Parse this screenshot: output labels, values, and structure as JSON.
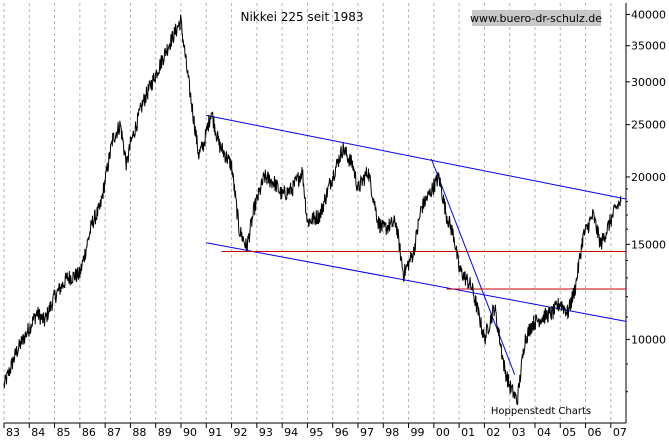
{
  "chart_data": {
    "type": "line",
    "title": "Nikkei 225 seit 1983",
    "source_label": "www.buero-dr-schulz.de",
    "credit": "Hoppenstedt Charts",
    "xlabel": "",
    "ylabel": "",
    "y_scale": "log",
    "ylim": [
      7000,
      42000
    ],
    "x_range": [
      1983.0,
      2007.6
    ],
    "x_ticks": [
      "83",
      "84",
      "85",
      "86",
      "87",
      "88",
      "89",
      "90",
      "91",
      "92",
      "93",
      "94",
      "95",
      "96",
      "97",
      "98",
      "99",
      "00",
      "01",
      "02",
      "03",
      "04",
      "05",
      "06",
      "07"
    ],
    "y_ticks": [
      10000,
      15000,
      20000,
      25000,
      30000,
      35000,
      40000
    ],
    "grid": true,
    "colors": {
      "series": "#000000",
      "trend_channel": "#0000ff",
      "support": "#cc0000",
      "source_bg": "#c8c8c8"
    },
    "series": [
      {
        "name": "",
        "x": [
          1983.0,
          1983.5,
          1984.0,
          1984.3,
          1984.6,
          1985.0,
          1985.5,
          1986.0,
          1986.5,
          1986.8,
          1987.3,
          1987.6,
          1987.85,
          1988.0,
          1988.5,
          1989.0,
          1989.5,
          1989.99,
          1990.3,
          1990.7,
          1990.9,
          1991.2,
          1991.5,
          1992.0,
          1992.3,
          1992.6,
          1992.9,
          1993.3,
          1993.7,
          1994.0,
          1994.4,
          1994.8,
          1995.0,
          1995.5,
          1995.9,
          1996.4,
          1996.8,
          1997.0,
          1997.4,
          1997.8,
          1998.0,
          1998.5,
          1998.8,
          1999.2,
          1999.5,
          1999.8,
          2000.2,
          2000.5,
          2000.8,
          2001.0,
          2001.5,
          2001.8,
          2002.0,
          2002.4,
          2002.8,
          2003.0,
          2003.3,
          2003.6,
          2003.9,
          2004.3,
          2004.7,
          2005.0,
          2005.3,
          2005.6,
          2005.9,
          2006.3,
          2006.6,
          2006.9,
          2007.2,
          2007.4
        ],
        "values": [
          8200,
          9500,
          10500,
          11200,
          10800,
          12000,
          13000,
          13200,
          16500,
          17500,
          23500,
          25000,
          21000,
          23000,
          27500,
          31000,
          35000,
          38900,
          30000,
          22000,
          23000,
          26500,
          23000,
          21000,
          16000,
          14800,
          17500,
          20000,
          19500,
          18500,
          19000,
          20500,
          16500,
          17000,
          19500,
          22600,
          21000,
          19000,
          20500,
          16500,
          16000,
          16500,
          13200,
          14500,
          17500,
          18500,
          20000,
          17000,
          15500,
          13500,
          12500,
          11000,
          10000,
          11500,
          8800,
          8200,
          7700,
          10000,
          10700,
          11000,
          11200,
          11700,
          11200,
          12500,
          15500,
          17000,
          15000,
          16200,
          17500,
          18000
        ]
      }
    ],
    "annotations": {
      "blue_lines": [
        {
          "from": [
            1991.0,
            26000
          ],
          "to": [
            2007.6,
            18200
          ]
        },
        {
          "from": [
            1991.0,
            15100
          ],
          "to": [
            2007.6,
            10800
          ]
        },
        {
          "from": [
            1999.9,
            21600
          ],
          "to": [
            2003.2,
            8600
          ]
        }
      ],
      "red_lines": [
        {
          "from": [
            1991.6,
            14550
          ],
          "to": [
            2007.6,
            14550
          ]
        },
        {
          "from": [
            2000.5,
            12400
          ],
          "to": [
            2007.6,
            12400
          ]
        }
      ]
    }
  }
}
